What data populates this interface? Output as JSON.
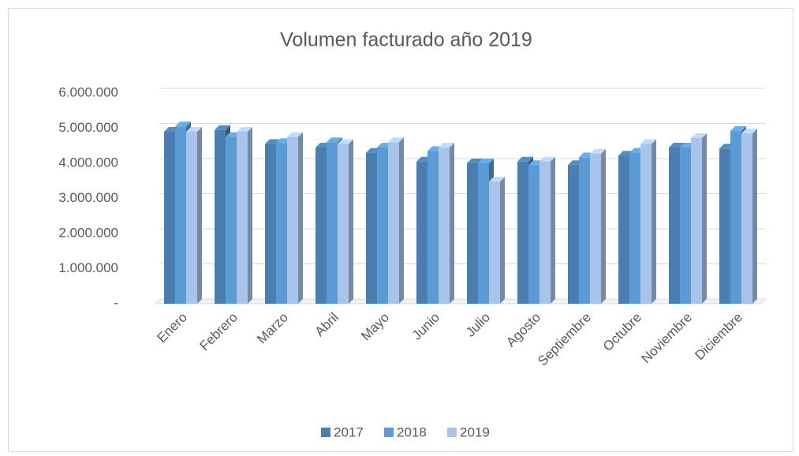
{
  "chart_data": {
    "type": "bar3d",
    "title": "Volumen facturado año 2019",
    "categories": [
      "Enero",
      "Febrero",
      "Marzo",
      "Abril",
      "Mayo",
      "Junio",
      "Julio",
      "Agosto",
      "Septiembre",
      "Octubre",
      "Noviembre",
      "Diciembre"
    ],
    "series": [
      {
        "name": "2017",
        "color": "#4a7eb0",
        "values": [
          4900000,
          4950000,
          4550000,
          4450000,
          4300000,
          4050000,
          4000000,
          4050000,
          3950000,
          4220000,
          4450000,
          4420000
        ]
      },
      {
        "name": "2018",
        "color": "#5b9bd5",
        "values": [
          5050000,
          4750000,
          4580000,
          4600000,
          4450000,
          4350000,
          4000000,
          3950000,
          4170000,
          4300000,
          4450000,
          4920000
        ]
      },
      {
        "name": "2019",
        "color": "#a9c4eb",
        "values": [
          4900000,
          4900000,
          4750000,
          4550000,
          4600000,
          4450000,
          3480000,
          4050000,
          4270000,
          4550000,
          4720000,
          4850000
        ]
      }
    ],
    "ylim": [
      0,
      6000000
    ],
    "yticks": [
      {
        "value": 0,
        "label": "-"
      },
      {
        "value": 1000000,
        "label": "1.000.000"
      },
      {
        "value": 2000000,
        "label": "2.000.000"
      },
      {
        "value": 3000000,
        "label": "3.000.000"
      },
      {
        "value": 4000000,
        "label": "4.000.000"
      },
      {
        "value": 5000000,
        "label": "5.000.000"
      },
      {
        "value": 6000000,
        "label": "6.000.000"
      }
    ],
    "grid": true,
    "legend": "bottom"
  }
}
